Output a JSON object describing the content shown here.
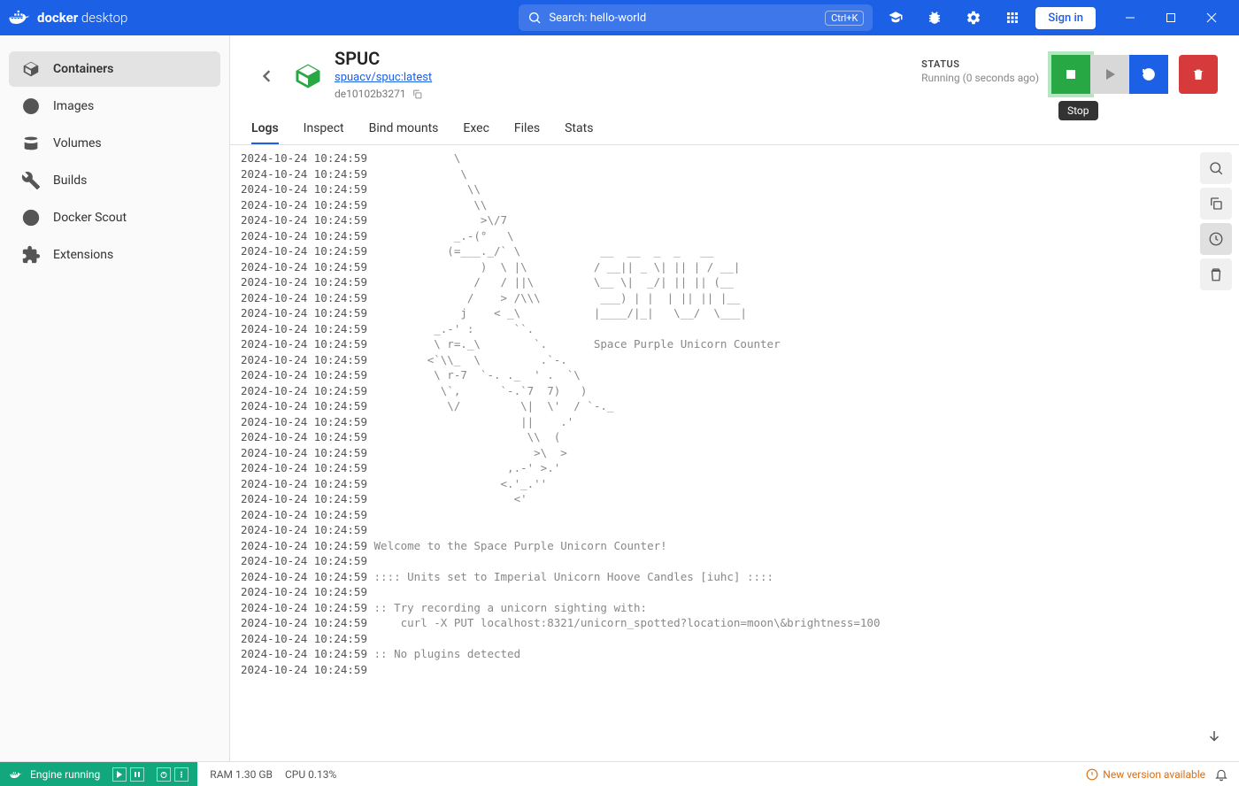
{
  "titlebar": {
    "brand_1": "docker",
    "brand_2": "desktop",
    "search_placeholder": "Search: hello-world",
    "search_shortcut": "Ctrl+K",
    "signin": "Sign in"
  },
  "sidebar": {
    "items": [
      {
        "label": "Containers",
        "icon": "containers"
      },
      {
        "label": "Images",
        "icon": "images"
      },
      {
        "label": "Volumes",
        "icon": "volumes"
      },
      {
        "label": "Builds",
        "icon": "builds"
      },
      {
        "label": "Docker Scout",
        "icon": "scout"
      },
      {
        "label": "Extensions",
        "icon": "extensions"
      }
    ]
  },
  "container": {
    "name": "SPUC",
    "image": "spuacv/spuc:latest",
    "id": "de10102b3271",
    "status_label": "STATUS",
    "status_text": "Running (0 seconds ago)",
    "tooltip": "Stop"
  },
  "tabs": [
    "Logs",
    "Inspect",
    "Bind mounts",
    "Exec",
    "Files",
    "Stats"
  ],
  "active_tab": 0,
  "logs": {
    "timestamp": "2024-10-24 10:24:59",
    "ascii": [
      "            \\",
      "             \\",
      "              \\\\",
      "               \\\\",
      "                >\\/7",
      "            _.-(°   \\",
      "           (=___._/` \\            __  __  _  _   __ ",
      "                )  \\ |\\          / __|| _ \\| || | / __|",
      "               /   / ||\\         \\__ \\|  _/| || || (__ ",
      "              /    > /\\\\\\         ___) | |  | || || |__ ",
      "             j    < _\\           |____/|_|   \\__/  \\___|",
      "         _.-' :      ``.",
      "         \\ r=._\\        `.       Space Purple Unicorn Counter",
      "        <`\\\\_  \\         .`-.",
      "         \\ r-7  `-. ._  ' .  `\\",
      "          \\`,      `-.`7  7)   )",
      "           \\/         \\|  \\'  / `-._",
      "                      ||    .'",
      "                       \\\\  (",
      "                        >\\  >",
      "                    ,.-' >.'",
      "                   <.'_.''",
      "                     <'",
      "",
      "",
      "Welcome to the Space Purple Unicorn Counter!",
      "",
      ":::: Units set to Imperial Unicorn Hoove Candles [iuhc] ::::",
      "",
      ":: Try recording a unicorn sighting with:",
      "    curl -X PUT localhost:8321/unicorn_spotted?location=moon\\&brightness=100",
      "",
      ":: No plugins detected",
      ""
    ]
  },
  "statusbar": {
    "engine": "Engine running",
    "ram": "RAM 1.30 GB",
    "cpu": "CPU 0.13%",
    "update": "New version available"
  },
  "colors": {
    "primary": "#1c60e6",
    "green": "#28a745",
    "green_glow": "#b5e6c1",
    "red": "#d73a3a",
    "teal": "#12a87d",
    "orange": "#d97015"
  }
}
